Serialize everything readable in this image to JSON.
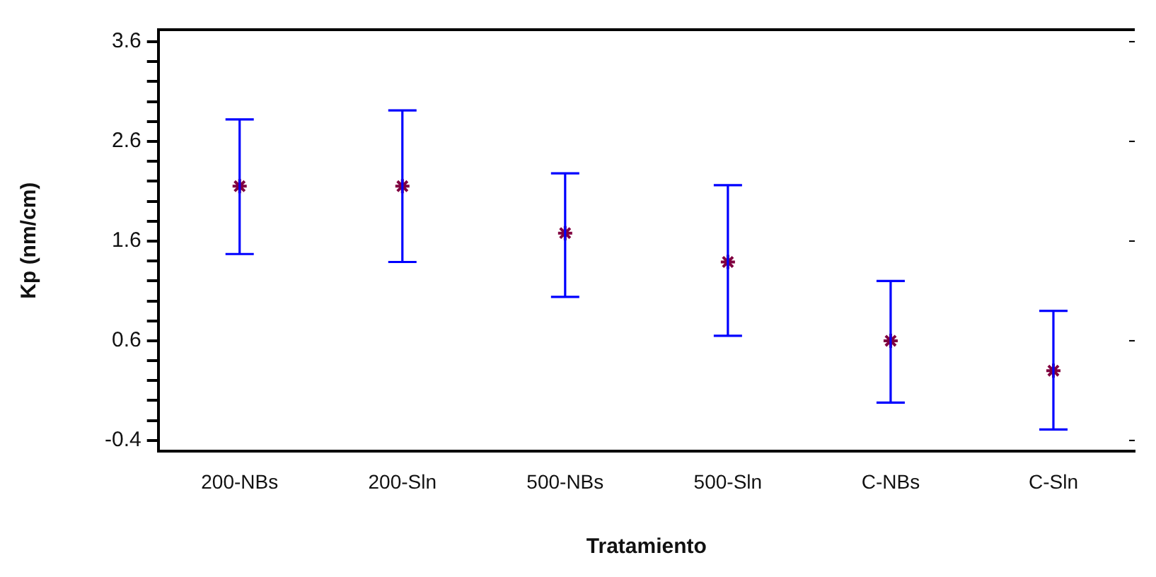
{
  "chart_data": {
    "type": "scatter",
    "xlabel": "Tratamiento",
    "ylabel": "Kp (nm/cm)",
    "categories": [
      "200-NBs",
      "200-Sln",
      "500-NBs",
      "500-Sln",
      "C-NBs",
      "C-Sln"
    ],
    "series": [
      {
        "color": "#800040",
        "values": [
          2.15,
          2.15,
          1.68,
          1.39,
          0.6,
          0.3
        ],
        "errors": [
          [
            1.47,
            2.82
          ],
          [
            1.39,
            2.91
          ],
          [
            1.04,
            2.28
          ],
          [
            0.65,
            2.16
          ],
          [
            -0.02,
            1.2
          ],
          [
            -0.29,
            0.9
          ]
        ]
      }
    ],
    "ylim": [
      -0.51,
      3.72
    ],
    "yticks": [
      {
        "value": -0.4,
        "label": "-0.4"
      },
      {
        "value": -0.2,
        "label": null
      },
      {
        "value": 0,
        "label": null
      },
      {
        "value": 0.2,
        "label": null
      },
      {
        "value": 0.4,
        "label": null
      },
      {
        "value": 0.6,
        "label": "0.6"
      },
      {
        "value": 0.8,
        "label": null
      },
      {
        "value": 1,
        "label": null
      },
      {
        "value": 1.2,
        "label": null
      },
      {
        "value": 1.4,
        "label": null
      },
      {
        "value": 1.6,
        "label": "1.6"
      },
      {
        "value": 1.8,
        "label": null
      },
      {
        "value": 2,
        "label": null
      },
      {
        "value": 2.2,
        "label": null
      },
      {
        "value": 2.4,
        "label": null
      },
      {
        "value": 2.6,
        "label": "2.6"
      },
      {
        "value": 2.8,
        "label": null
      },
      {
        "value": 3,
        "label": null
      },
      {
        "value": 3.2,
        "label": null
      },
      {
        "value": 3.4,
        "label": null
      },
      {
        "value": 3.6,
        "label": "3.6"
      }
    ],
    "marker": "cross",
    "grid": false,
    "legend": false
  }
}
